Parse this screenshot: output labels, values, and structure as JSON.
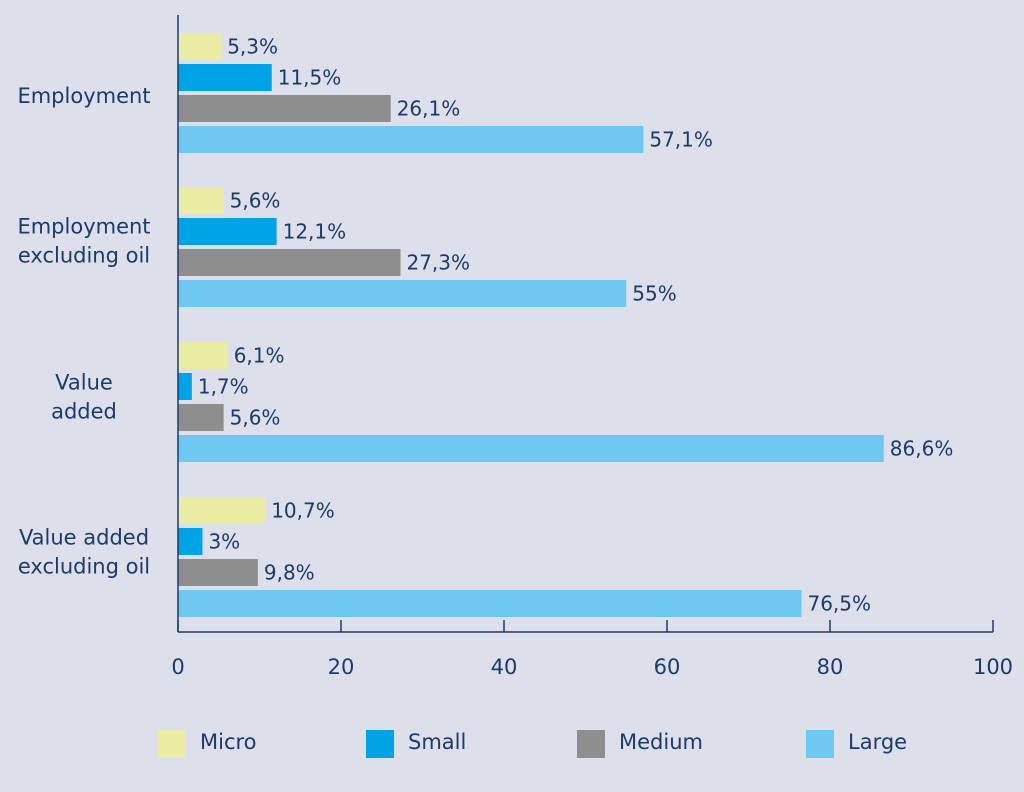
{
  "chart_data": {
    "type": "bar",
    "orientation": "horizontal",
    "title": "",
    "xlabel": "",
    "ylabel": "",
    "categories": [
      [
        "Employment"
      ],
      [
        "Employment",
        "excluding oil"
      ],
      [
        "Value",
        "added"
      ],
      [
        "Value added",
        "excluding oil"
      ]
    ],
    "series": [
      {
        "name": "Micro",
        "color": "#eaeca3",
        "values": [
          5.3,
          5.6,
          6.1,
          10.7
        ],
        "labels": [
          "5,3%",
          "5,6%",
          "6,1%",
          "10,7%"
        ]
      },
      {
        "name": "Small",
        "color": "#00a3e6",
        "values": [
          11.5,
          12.1,
          1.7,
          3.0
        ],
        "labels": [
          "11,5%",
          "12,1%",
          "1,7%",
          "3%"
        ]
      },
      {
        "name": "Medium",
        "color": "#8e8e8e",
        "values": [
          26.1,
          27.3,
          5.6,
          9.8
        ],
        "labels": [
          "26,1%",
          "27,3%",
          "5,6%",
          "9,8%"
        ]
      },
      {
        "name": "Large",
        "color": "#6ec8f2",
        "values": [
          57.1,
          55.0,
          86.6,
          76.5
        ],
        "labels": [
          "57,1%",
          "55%",
          "86,6%",
          "76,5%"
        ]
      }
    ],
    "xlim": [
      0,
      100
    ],
    "xticks": [
      "0",
      "20",
      "40",
      "60",
      "80",
      "100"
    ],
    "grid": false,
    "legend_position": "bottom"
  }
}
